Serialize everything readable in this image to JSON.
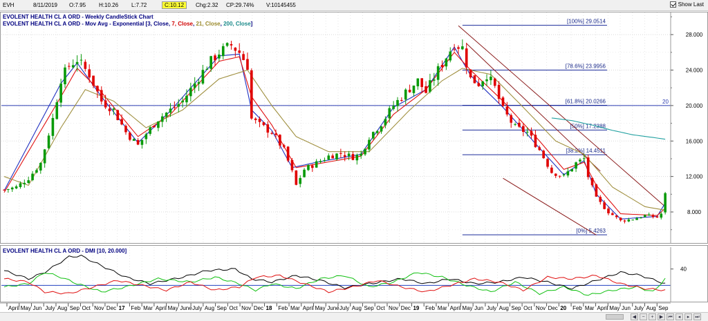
{
  "header": {
    "symbol": "EVH",
    "date": "8/11/2019",
    "open": "O:7.95",
    "high": "H:10.26",
    "low": "L:7.72",
    "close": "C:10.12",
    "change": "Chg:2.32",
    "change_pct": "CP:29.74%",
    "volume": "V:10145455",
    "show_last_label": "Show Last"
  },
  "legend": {
    "title_line": "EVOLENT HEALTH CL A ORD - Weekly CandleStick Chart",
    "ma_prefix": "EVOLENT HEALTH CL A ORD - Mov Avg - Exponential [",
    "ma_3": "3, Close",
    "ma_7": "7, Close",
    "ma_21": "21, Close",
    "ma_200": "200, Close",
    "ma_suffix": "]",
    "dmi_line": "EVOLENT HEALTH CL A ORD - DMI [10, 20.000]"
  },
  "colors": {
    "bull": "#0a9a0a",
    "bear": "#e00000",
    "ema3": "#2030c0",
    "ema7": "#e01010",
    "ema21": "#a09040",
    "ema200": "#20a0a0",
    "fib": "#1a2a9a",
    "trend": "#8a1a1a",
    "dmi_plus": "#10c010",
    "dmi_minus": "#e01010",
    "adx": "#000000",
    "dmi_level": "#2040c0"
  },
  "chart_data": [
    {
      "type": "candlestick",
      "title": "EVOLENT HEALTH CL A ORD - Weekly CandleStick Chart",
      "ylim": [
        4.5,
        30.5
      ],
      "y_ticks": [
        "28.000",
        "24.000",
        "20.000",
        "16.000",
        "12.000",
        "8.000"
      ],
      "y_tick_values": [
        28,
        24,
        20,
        16,
        12,
        8
      ],
      "x_ticks": [
        "April",
        "May",
        "Jun",
        "July",
        "Aug",
        "Sep",
        "Oct",
        "Nov",
        "Dec",
        "17",
        "Feb",
        "Mar",
        "April",
        "May",
        "June",
        "July",
        "Aug",
        "Sep",
        "Oct",
        "Nov",
        "Dec",
        "18",
        "Feb",
        "Mar",
        "April",
        "May",
        "June",
        "July",
        "Aug",
        "Sep",
        "Oct",
        "Nov",
        "Dec",
        "19",
        "Feb",
        "Mar",
        "April",
        "May",
        "Jun",
        "July",
        "Aug",
        "Sep",
        "Oct",
        "Nov",
        "Dec",
        "20",
        "Feb",
        "Mar",
        "April",
        "May",
        "Jun",
        "July",
        "Aug",
        "Sep"
      ],
      "bold_ticks": [
        "17",
        "18",
        "19",
        "20"
      ],
      "price_anchors": [
        [
          0,
          10.5
        ],
        [
          3,
          10.8
        ],
        [
          6,
          11.8
        ],
        [
          9,
          13.5
        ],
        [
          12,
          18.5
        ],
        [
          14,
          23.0
        ],
        [
          16,
          24.5
        ],
        [
          18,
          25.2
        ],
        [
          21,
          23.5
        ],
        [
          24,
          20.5
        ],
        [
          27,
          19.5
        ],
        [
          30,
          17.0
        ],
        [
          33,
          15.5
        ],
        [
          35,
          16.8
        ],
        [
          38,
          18.5
        ],
        [
          41,
          19.5
        ],
        [
          44,
          20.5
        ],
        [
          47,
          22.5
        ],
        [
          50,
          24.5
        ],
        [
          53,
          26.0
        ],
        [
          56,
          26.8
        ],
        [
          58,
          26.0
        ],
        [
          60,
          24.5
        ],
        [
          61,
          18.5
        ],
        [
          63,
          17.8
        ],
        [
          66,
          17.0
        ],
        [
          69,
          15.0
        ],
        [
          71,
          12.5
        ],
        [
          72,
          11.0
        ],
        [
          74,
          12.8
        ],
        [
          77,
          13.5
        ],
        [
          80,
          14.3
        ],
        [
          83,
          14.6
        ],
        [
          86,
          14.2
        ],
        [
          88,
          14.5
        ],
        [
          90,
          16.5
        ],
        [
          93,
          18.0
        ],
        [
          96,
          20.0
        ],
        [
          99,
          21.5
        ],
        [
          102,
          22.8
        ],
        [
          104,
          21.5
        ],
        [
          107,
          24.0
        ],
        [
          109,
          25.5
        ],
        [
          111,
          27.0
        ],
        [
          113,
          26.5
        ],
        [
          115,
          23.0
        ],
        [
          117,
          22.5
        ],
        [
          119,
          23.5
        ],
        [
          121,
          22.0
        ],
        [
          123,
          19.5
        ],
        [
          126,
          17.5
        ],
        [
          129,
          17.0
        ],
        [
          132,
          15.0
        ],
        [
          135,
          12.5
        ],
        [
          138,
          12.0
        ],
        [
          141,
          13.5
        ],
        [
          143,
          14.0
        ],
        [
          144,
          12.0
        ],
        [
          146,
          9.5
        ],
        [
          149,
          8.0
        ],
        [
          152,
          7.0
        ],
        [
          155,
          7.2
        ],
        [
          158,
          7.6
        ],
        [
          161,
          7.4
        ],
        [
          162,
          7.8
        ],
        [
          163,
          10.12
        ]
      ],
      "last_candle": {
        "date": "8/11/2019",
        "open": 7.95,
        "high": 10.26,
        "low": 7.72,
        "close": 10.12
      },
      "ema": [
        {
          "period": 3,
          "price": "Close",
          "anchors": [
            [
              0,
              10.4
            ],
            [
              14,
              22.5
            ],
            [
              18,
              24.8
            ],
            [
              24,
              21.0
            ],
            [
              33,
              15.8
            ],
            [
              41,
              19.4
            ],
            [
              53,
              25.6
            ],
            [
              58,
              25.8
            ],
            [
              61,
              19.5
            ],
            [
              66,
              17.2
            ],
            [
              71,
              13.0
            ],
            [
              77,
              13.6
            ],
            [
              88,
              14.5
            ],
            [
              96,
              19.8
            ],
            [
              104,
              21.8
            ],
            [
              111,
              26.6
            ],
            [
              115,
              23.4
            ],
            [
              123,
              19.8
            ],
            [
              132,
              15.2
            ],
            [
              138,
              12.2
            ],
            [
              143,
              13.8
            ],
            [
              146,
              10.0
            ],
            [
              152,
              7.2
            ],
            [
              161,
              7.5
            ],
            [
              163,
              9.0
            ]
          ]
        },
        {
          "period": 7,
          "price": "Close",
          "anchors": [
            [
              0,
              10.2
            ],
            [
              14,
              21.0
            ],
            [
              18,
              24.2
            ],
            [
              24,
              21.5
            ],
            [
              33,
              16.5
            ],
            [
              41,
              19.0
            ],
            [
              53,
              25.0
            ],
            [
              58,
              25.5
            ],
            [
              61,
              21.0
            ],
            [
              66,
              17.8
            ],
            [
              72,
              13.0
            ],
            [
              77,
              13.4
            ],
            [
              88,
              14.3
            ],
            [
              96,
              19.0
            ],
            [
              104,
              21.8
            ],
            [
              111,
              26.0
            ],
            [
              115,
              24.0
            ],
            [
              123,
              20.5
            ],
            [
              132,
              16.0
            ],
            [
              138,
              12.8
            ],
            [
              143,
              13.6
            ],
            [
              146,
              11.0
            ],
            [
              152,
              7.8
            ],
            [
              161,
              7.6
            ],
            [
              163,
              8.4
            ]
          ]
        },
        {
          "period": 21,
          "price": "Close",
          "anchors": [
            [
              0,
              12.0
            ],
            [
              6,
              11.0
            ],
            [
              14,
              17.5
            ],
            [
              20,
              21.8
            ],
            [
              27,
              20.5
            ],
            [
              35,
              17.5
            ],
            [
              44,
              19.5
            ],
            [
              53,
              23.0
            ],
            [
              60,
              24.0
            ],
            [
              66,
              20.0
            ],
            [
              72,
              16.5
            ],
            [
              80,
              14.8
            ],
            [
              90,
              14.8
            ],
            [
              100,
              19.5
            ],
            [
              108,
              22.8
            ],
            [
              113,
              24.2
            ],
            [
              120,
              23.5
            ],
            [
              128,
              19.8
            ],
            [
              136,
              16.0
            ],
            [
              143,
              14.5
            ],
            [
              150,
              10.8
            ],
            [
              158,
              8.6
            ],
            [
              163,
              8.2
            ]
          ]
        },
        {
          "period": 200,
          "price": "Close",
          "anchors": [
            [
              135,
              18.6
            ],
            [
              140,
              18.3
            ],
            [
              145,
              17.8
            ],
            [
              150,
              17.2
            ],
            [
              155,
              16.7
            ],
            [
              160,
              16.4
            ],
            [
              163,
              16.2
            ]
          ]
        }
      ],
      "fibonacci": [
        {
          "label": "[100%] 29.0514",
          "value": 29.0514
        },
        {
          "label": "[78.6%] 23.9956",
          "value": 23.9956
        },
        {
          "label": "[61.8%] 20.0266",
          "value": 20.0266
        },
        {
          "label": "[50%] 17.2388",
          "value": 17.2388
        },
        {
          "label": "[38.2%] 14.4511",
          "value": 14.4511
        },
        {
          "label": "[0%] 5.4263",
          "value": 5.4263
        }
      ],
      "horizontal_line": {
        "value": 20.0,
        "label": "20"
      },
      "trend_channel": {
        "upper": [
          [
            112,
            29.0
          ],
          [
            163,
            8.6
          ]
        ],
        "lower": [
          [
            123,
            11.8
          ],
          [
            146,
            5.4
          ]
        ],
        "mid": [
          [
            114,
            27.0
          ],
          [
            147,
            12.6
          ]
        ]
      }
    },
    {
      "type": "line",
      "title": "EVOLENT HEALTH CL A ORD - DMI [10, 20.000]",
      "ylim": [
        0,
        60
      ],
      "y_ticks": [
        "40"
      ],
      "y_tick_values": [
        40
      ],
      "level": 20,
      "series": [
        {
          "key": "adx",
          "anchors": [
            [
              0,
              38
            ],
            [
              6,
              28
            ],
            [
              10,
              36
            ],
            [
              16,
              55
            ],
            [
              19,
              56
            ],
            [
              24,
              44
            ],
            [
              30,
              30
            ],
            [
              36,
              22
            ],
            [
              44,
              30
            ],
            [
              50,
              38
            ],
            [
              57,
              40
            ],
            [
              61,
              28
            ],
            [
              66,
              24
            ],
            [
              72,
              32
            ],
            [
              78,
              26
            ],
            [
              84,
              17
            ],
            [
              90,
              22
            ],
            [
              98,
              28
            ],
            [
              104,
              22
            ],
            [
              110,
              28
            ],
            [
              116,
              22
            ],
            [
              122,
              24
            ],
            [
              128,
              30
            ],
            [
              134,
              24
            ],
            [
              140,
              16
            ],
            [
              146,
              26
            ],
            [
              152,
              36
            ],
            [
              157,
              32
            ],
            [
              163,
              22
            ]
          ]
        },
        {
          "key": "plus_di",
          "anchors": [
            [
              0,
              18
            ],
            [
              6,
              22
            ],
            [
              10,
              36
            ],
            [
              14,
              30
            ],
            [
              18,
              22
            ],
            [
              24,
              12
            ],
            [
              30,
              18
            ],
            [
              38,
              28
            ],
            [
              46,
              24
            ],
            [
              52,
              30
            ],
            [
              58,
              22
            ],
            [
              62,
              14
            ],
            [
              66,
              22
            ],
            [
              72,
              16
            ],
            [
              78,
              28
            ],
            [
              84,
              32
            ],
            [
              90,
              18
            ],
            [
              96,
              24
            ],
            [
              102,
              36
            ],
            [
              108,
              30
            ],
            [
              114,
              20
            ],
            [
              120,
              12
            ],
            [
              126,
              24
            ],
            [
              132,
              10
            ],
            [
              138,
              18
            ],
            [
              144,
              8
            ],
            [
              150,
              14
            ],
            [
              156,
              18
            ],
            [
              160,
              12
            ],
            [
              163,
              28
            ]
          ]
        },
        {
          "key": "minus_di",
          "anchors": [
            [
              0,
              28
            ],
            [
              6,
              24
            ],
            [
              10,
              12
            ],
            [
              16,
              10
            ],
            [
              22,
              18
            ],
            [
              28,
              26
            ],
            [
              34,
              20
            ],
            [
              40,
              14
            ],
            [
              46,
              24
            ],
            [
              52,
              14
            ],
            [
              58,
              18
            ],
            [
              62,
              30
            ],
            [
              68,
              32
            ],
            [
              74,
              22
            ],
            [
              80,
              12
            ],
            [
              86,
              18
            ],
            [
              92,
              26
            ],
            [
              98,
              18
            ],
            [
              104,
              12
            ],
            [
              110,
              20
            ],
            [
              116,
              28
            ],
            [
              122,
              24
            ],
            [
              128,
              14
            ],
            [
              134,
              30
            ],
            [
              140,
              28
            ],
            [
              146,
              32
            ],
            [
              152,
              22
            ],
            [
              158,
              16
            ],
            [
              163,
              14
            ]
          ]
        }
      ]
    }
  ]
}
